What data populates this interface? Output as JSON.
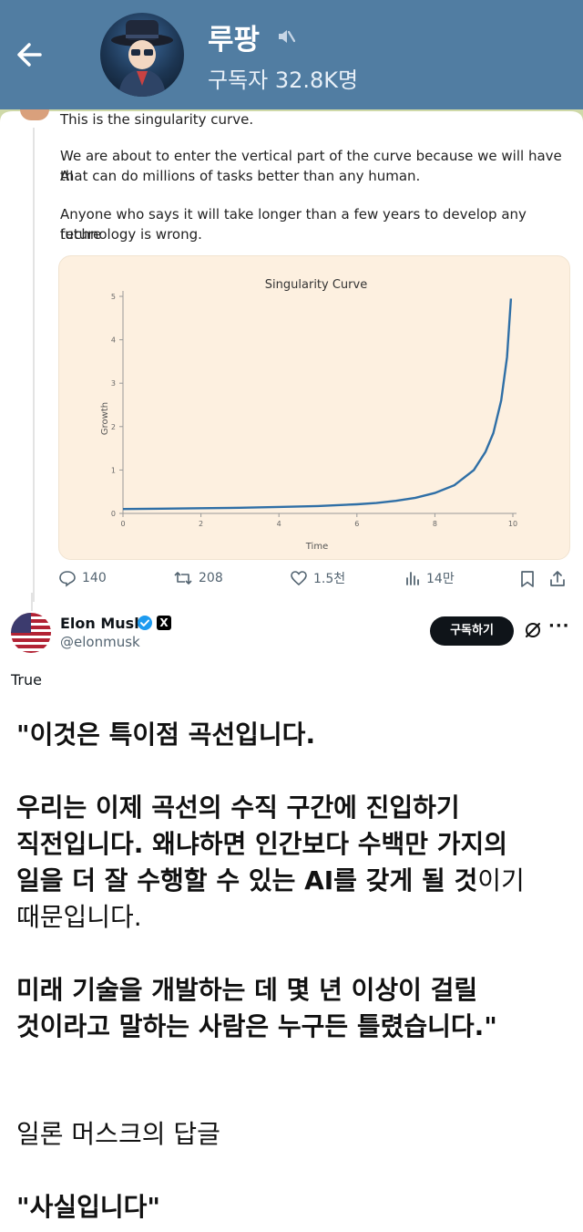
{
  "header": {
    "channel_name": "루팡",
    "subscribers": "구독자 32.8K명",
    "back_icon": "arrow-left-icon",
    "mute_icon": "muted-speaker-icon"
  },
  "tweet": {
    "line0": "This is the singularity curve.",
    "para1a": "We are about to enter the vertical part of the curve because we will have AI",
    "para1b": "that can do millions of tasks better than any human.",
    "para2a": "Anyone who says it will take longer than a few years to develop any future",
    "para2b": "technology is wrong.",
    "stats": {
      "replies": "140",
      "reposts": "208",
      "likes": "1.5천",
      "views": "14만"
    }
  },
  "chart_data": {
    "type": "line",
    "title": "Singularity Curve",
    "xlabel": "Time",
    "ylabel": "Growth",
    "xlim": [
      0,
      10
    ],
    "ylim": [
      0,
      5
    ],
    "xticks": [
      0,
      2,
      4,
      6,
      8,
      10
    ],
    "yticks": [
      0,
      1,
      2,
      3,
      4,
      5
    ],
    "series": [
      {
        "color": "#2f6fa6",
        "x": [
          0,
          1,
          2,
          3,
          4,
          5,
          6,
          6.5,
          7,
          7.5,
          8,
          8.5,
          9,
          9.3,
          9.5,
          9.7,
          9.85,
          9.95
        ],
        "y": [
          0.1,
          0.11,
          0.12,
          0.13,
          0.15,
          0.17,
          0.21,
          0.24,
          0.29,
          0.36,
          0.47,
          0.65,
          1.0,
          1.42,
          1.85,
          2.6,
          3.6,
          4.95
        ]
      }
    ],
    "grid": false
  },
  "reply": {
    "author": "Elon Musk",
    "handle": "@elonmusk",
    "x_badge": "X",
    "subscribe_label": "구독하기",
    "more_label": "···",
    "text": "True"
  },
  "translation": {
    "p1": "\"이것은 특이점 곡선입니다.",
    "p2_line1": "우리는 이제 곡선의 수직 구간에 진입하기",
    "p2_line2": "직전입니다. 왜냐하면 인간보다 수백만 가지의",
    "p2_line3_bold": "일을 더 잘 수행할 수 있는 AI를 갖게 될 것",
    "p2_line3_normal": "이기",
    "p2_line4": "때문입니다.",
    "p3_line1": "미래 기술을 개발하는 데 몇 년 이상이 걸릴",
    "p3_line2": "것이라고 말하는 사람은 누구든 틀렸습니다.\"",
    "musk_reply_label": "일론 머스크의 답글",
    "musk_reply": "\"사실입니다\""
  },
  "colors": {
    "header_bg": "#517da2",
    "chart_bg": "#fdf0e0",
    "line": "#2f6fa6",
    "subscribe_btn": "#0f1419"
  }
}
